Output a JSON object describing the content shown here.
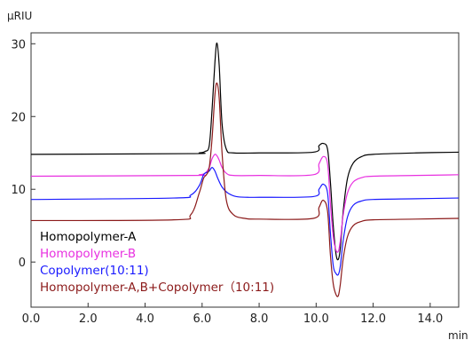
{
  "chart_data": {
    "type": "line",
    "ylabel": "μRIU",
    "xlabel": "min",
    "xlim": [
      0.0,
      15.0
    ],
    "ylim": [
      -6.2,
      31.5
    ],
    "x_ticks": [
      0.0,
      2.0,
      4.0,
      6.0,
      8.0,
      10.0,
      12.0,
      14.0
    ],
    "x_tick_labels": [
      "0.0",
      "2.0",
      "4.0",
      "6.0",
      "8.0",
      "10.0",
      "12.0",
      "14.0"
    ],
    "y_ticks": [
      0,
      10,
      20,
      30
    ],
    "y_tick_labels": [
      "0",
      "10",
      "20",
      "30"
    ],
    "grid": false,
    "legend_position": "bottom-left",
    "series": [
      {
        "name": "Homopolymer-A",
        "color": "#000000",
        "x": [
          0.0,
          5.6,
          5.9,
          6.1,
          6.25,
          6.35,
          6.45,
          6.52,
          6.6,
          6.7,
          6.85,
          7.1,
          8.0,
          9.9,
          10.1,
          10.25,
          10.4,
          10.5,
          10.6,
          10.7,
          10.78,
          10.85,
          10.95,
          11.1,
          11.3,
          11.6,
          12.0,
          13.5,
          15.0
        ],
        "y": [
          14.8,
          14.9,
          15.0,
          15.2,
          16.0,
          21.0,
          27.5,
          30.1,
          27.0,
          19.0,
          15.5,
          15.0,
          15.0,
          15.1,
          16.0,
          16.3,
          15.5,
          11.0,
          5.0,
          1.0,
          0.4,
          2.0,
          7.0,
          11.5,
          13.6,
          14.5,
          14.8,
          15.0,
          15.1
        ]
      },
      {
        "name": "Homopolymer-B",
        "color": "#e830e0",
        "x": [
          0.0,
          5.6,
          5.9,
          6.1,
          6.25,
          6.35,
          6.45,
          6.52,
          6.6,
          6.7,
          6.85,
          7.1,
          8.0,
          9.9,
          10.1,
          10.25,
          10.4,
          10.5,
          10.6,
          10.7,
          10.78,
          10.85,
          10.95,
          11.1,
          11.3,
          11.6,
          12.0,
          13.5,
          15.0
        ],
        "y": [
          11.8,
          11.9,
          12.0,
          12.2,
          13.0,
          14.2,
          14.8,
          14.6,
          14.0,
          13.0,
          12.2,
          11.9,
          11.9,
          12.0,
          13.5,
          14.5,
          13.5,
          8.0,
          3.5,
          1.6,
          1.5,
          3.0,
          6.5,
          9.5,
          11.0,
          11.6,
          11.8,
          11.9,
          12.0
        ]
      },
      {
        "name": "Copolymer(10:11)",
        "color": "#1a1aff",
        "x": [
          0.0,
          5.0,
          5.6,
          5.9,
          6.05,
          6.15,
          6.25,
          6.35,
          6.45,
          6.55,
          6.7,
          6.9,
          7.2,
          7.6,
          8.0,
          9.9,
          10.1,
          10.25,
          10.4,
          10.5,
          10.6,
          10.7,
          10.78,
          10.85,
          10.95,
          11.1,
          11.3,
          11.6,
          12.0,
          13.5,
          15.0
        ],
        "y": [
          8.6,
          8.8,
          9.2,
          10.5,
          12.0,
          12.3,
          12.5,
          13.0,
          12.5,
          11.5,
          10.3,
          9.5,
          9.0,
          8.9,
          8.9,
          9.0,
          10.0,
          10.7,
          9.5,
          4.0,
          -0.5,
          -1.6,
          -1.7,
          -0.5,
          3.0,
          6.2,
          7.8,
          8.4,
          8.6,
          8.7,
          8.8
        ]
      },
      {
        "name": "Homopolymer-A,B+Copolymer（10:11)",
        "color": "#8b1a1a",
        "x": [
          0.0,
          5.0,
          5.6,
          5.9,
          6.05,
          6.15,
          6.25,
          6.35,
          6.45,
          6.52,
          6.6,
          6.7,
          6.85,
          7.1,
          7.5,
          8.0,
          9.9,
          10.1,
          10.25,
          10.4,
          10.5,
          10.6,
          10.7,
          10.78,
          10.85,
          10.95,
          11.1,
          11.3,
          11.6,
          12.0,
          13.5,
          15.0
        ],
        "y": [
          5.7,
          5.8,
          6.5,
          9.5,
          11.5,
          12.0,
          13.0,
          17.0,
          23.0,
          24.6,
          22.5,
          15.0,
          8.5,
          6.5,
          6.0,
          5.9,
          6.0,
          7.5,
          8.5,
          7.0,
          1.0,
          -3.0,
          -4.5,
          -4.6,
          -3.0,
          0.5,
          3.5,
          5.0,
          5.6,
          5.8,
          5.9,
          6.0
        ]
      }
    ]
  }
}
